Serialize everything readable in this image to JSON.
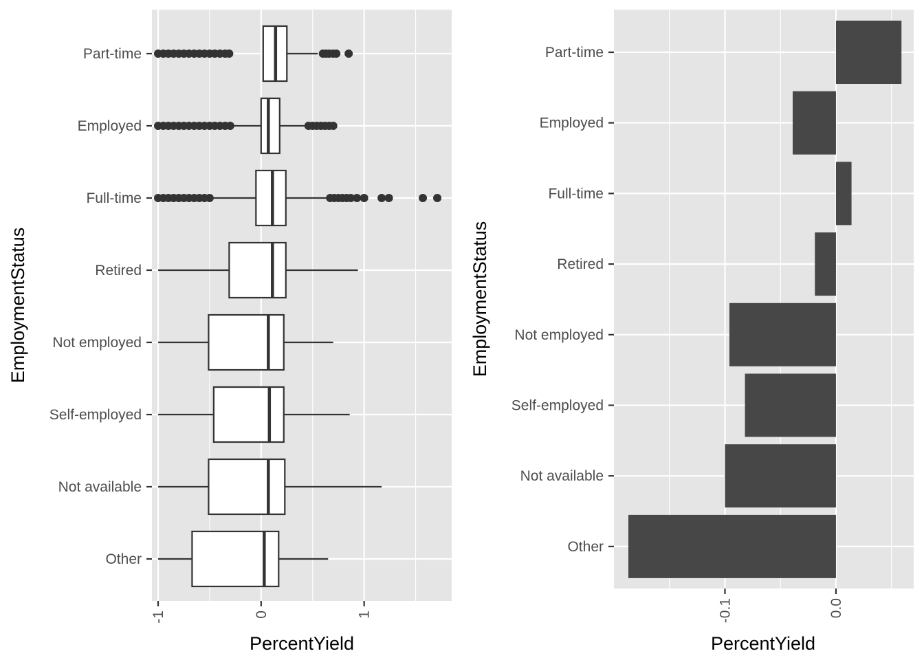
{
  "chart_data": [
    {
      "type": "boxplot",
      "orientation": "horizontal",
      "xlabel": "PercentYield",
      "ylabel": "EmploymentStatus",
      "xlim": [
        -1.06,
        1.85
      ],
      "xticks": [
        -1,
        0,
        1
      ],
      "xtick_labels": [
        "-1",
        "0",
        "1"
      ],
      "grid": true,
      "categories": [
        "Part-time",
        "Employed",
        "Full-time",
        "Retired",
        "Not employed",
        "Self-employed",
        "Not available",
        "Other"
      ],
      "boxes": [
        {
          "category": "Part-time",
          "whisker_low": 0.02,
          "q1": 0.02,
          "median": 0.14,
          "q3": 0.25,
          "whisker_high": 0.55,
          "outliers": [
            -1.0,
            -0.95,
            -0.9,
            -0.85,
            -0.8,
            -0.75,
            -0.7,
            -0.65,
            -0.6,
            -0.55,
            -0.5,
            -0.45,
            -0.4,
            -0.35,
            -0.31,
            0.6,
            0.63,
            0.66,
            0.7,
            0.73,
            0.85
          ]
        },
        {
          "category": "Employed",
          "whisker_low": -0.27,
          "q1": 0.0,
          "median": 0.07,
          "q3": 0.18,
          "whisker_high": 0.43,
          "outliers": [
            -1.0,
            -0.95,
            -0.9,
            -0.85,
            -0.8,
            -0.75,
            -0.7,
            -0.65,
            -0.6,
            -0.55,
            -0.5,
            -0.45,
            -0.4,
            -0.35,
            -0.3,
            0.46,
            0.5,
            0.54,
            0.58,
            0.62,
            0.66,
            0.7
          ]
        },
        {
          "category": "Full-time",
          "whisker_low": -0.48,
          "q1": -0.05,
          "median": 0.11,
          "q3": 0.24,
          "whisker_high": 0.64,
          "outliers": [
            -1.0,
            -0.95,
            -0.9,
            -0.85,
            -0.8,
            -0.75,
            -0.7,
            -0.65,
            -0.6,
            -0.55,
            -0.5,
            0.67,
            0.71,
            0.75,
            0.79,
            0.83,
            0.87,
            0.93,
            1.0,
            1.17,
            1.24,
            1.57,
            1.71
          ]
        },
        {
          "category": "Retired",
          "whisker_low": -1.0,
          "q1": -0.31,
          "median": 0.11,
          "q3": 0.24,
          "whisker_high": 0.94,
          "outliers": []
        },
        {
          "category": "Not employed",
          "whisker_low": -1.0,
          "q1": -0.51,
          "median": 0.07,
          "q3": 0.22,
          "whisker_high": 0.7,
          "outliers": []
        },
        {
          "category": "Self-employed",
          "whisker_low": -1.0,
          "q1": -0.46,
          "median": 0.08,
          "q3": 0.22,
          "whisker_high": 0.86,
          "outliers": []
        },
        {
          "category": "Not available",
          "whisker_low": -1.0,
          "q1": -0.51,
          "median": 0.07,
          "q3": 0.23,
          "whisker_high": 1.17,
          "outliers": []
        },
        {
          "category": "Other",
          "whisker_low": -1.0,
          "q1": -0.67,
          "median": 0.03,
          "q3": 0.17,
          "whisker_high": 0.65,
          "outliers": []
        }
      ]
    },
    {
      "type": "bar",
      "orientation": "horizontal",
      "xlabel": "PercentYield",
      "ylabel": "EmploymentStatus",
      "xlim": [
        -0.2,
        0.07
      ],
      "xticks": [
        -0.1,
        0.0
      ],
      "xtick_labels": [
        "-0.1",
        "0.0"
      ],
      "grid": true,
      "categories": [
        "Part-time",
        "Employed",
        "Full-time",
        "Retired",
        "Not employed",
        "Self-employed",
        "Not available",
        "Other"
      ],
      "values": [
        0.059,
        -0.039,
        0.014,
        -0.019,
        -0.096,
        -0.082,
        -0.1,
        -0.187
      ]
    }
  ]
}
